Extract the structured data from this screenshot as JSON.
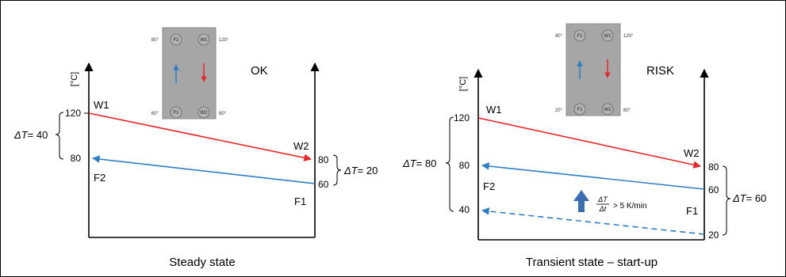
{
  "left": {
    "status": "OK",
    "caption": "Steady state",
    "unit": "[°C]",
    "hx": {
      "ports": {
        "top_left": "F2",
        "top_right": "W1",
        "bottom_left": "F1",
        "bottom_right": "W2"
      },
      "temps": {
        "top_left": "80°",
        "top_right": "120°",
        "bottom_left": "60°",
        "bottom_right": "80°"
      }
    },
    "y_labels": {
      "w1_in": "120",
      "f2_out": "80",
      "w2_out": "80",
      "f1_in": "60"
    },
    "series": {
      "w1": "W1",
      "w2": "W2",
      "f1": "F1",
      "f2": "F2"
    },
    "delta_left": {
      "symbol": "ΔT",
      "eq": "= 40"
    },
    "delta_right": {
      "symbol": "ΔT",
      "eq": "= 20"
    }
  },
  "right": {
    "status": "RISK",
    "caption": "Transient state – start-up",
    "unit": "[°C]",
    "hx": {
      "ports": {
        "top_left": "F2",
        "top_right": "W1",
        "bottom_left": "F1",
        "bottom_right": "W2"
      },
      "temps": {
        "top_left": "40°",
        "top_right": "120°",
        "bottom_left": "20°",
        "bottom_right": "80°"
      }
    },
    "y_labels": {
      "w1_in": "120",
      "f2_out": "80",
      "f2_low": "40",
      "w2_out": "80",
      "f1_in": "60",
      "f1_low": "20"
    },
    "series": {
      "w1": "W1",
      "w2": "W2",
      "f1": "F1",
      "f2": "F2"
    },
    "delta_left": {
      "symbol": "ΔT",
      "eq": "= 80"
    },
    "delta_right": {
      "symbol": "ΔT",
      "eq": "= 60"
    },
    "rate": {
      "num": "ΔT",
      "den": "Δt",
      "text": "> 5 K/min"
    }
  },
  "colors": {
    "hot": "#e8262a",
    "cold": "#2f7dc5",
    "hx_plate": "#a6a6a6",
    "axis": "#000000",
    "arrow_up": "#3b6db3"
  }
}
